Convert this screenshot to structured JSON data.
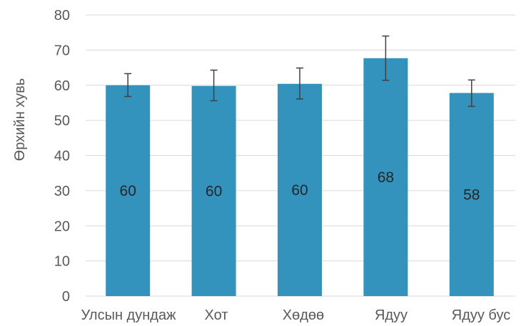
{
  "chart_data": {
    "type": "bar",
    "title": "",
    "xlabel": "",
    "ylabel": "Өрхийн хувь",
    "categories": [
      "Улсын дундаж",
      "Хот",
      "Хөдөө",
      "Ядуу",
      "Ядуу бус"
    ],
    "values": [
      60.0,
      59.8,
      60.4,
      67.7,
      57.8
    ],
    "error_low": [
      56.8,
      55.6,
      56.1,
      61.4,
      54.0
    ],
    "error_high": [
      63.3,
      64.3,
      64.9,
      74.0,
      61.5
    ],
    "data_labels": [
      "60",
      "60",
      "60",
      "68",
      "58"
    ],
    "ylim": [
      0,
      80
    ],
    "yticks": [
      "0",
      "10",
      "20",
      "30",
      "40",
      "50",
      "60",
      "70",
      "80"
    ],
    "grid": true,
    "colors": {
      "bar": "#3393BD",
      "grid": "#D9D9D9",
      "error": "#404040"
    }
  }
}
